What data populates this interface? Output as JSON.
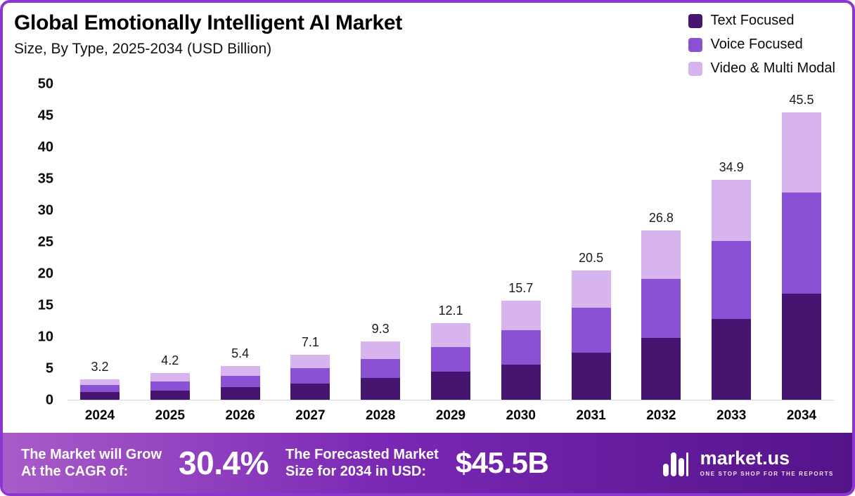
{
  "header": {
    "title": "Global Emotionally Intelligent AI Market",
    "subtitle": "Size, By Type, 2025-2034 (USD Billion)"
  },
  "chart_data": {
    "type": "bar",
    "stacked": true,
    "title": "Global Emotionally Intelligent AI Market",
    "subtitle": "Size, By Type, 2025-2034 (USD Billion)",
    "unit": "USD Billion",
    "categories": [
      "2024",
      "2025",
      "2026",
      "2027",
      "2028",
      "2029",
      "2030",
      "2031",
      "2032",
      "2033",
      "2034"
    ],
    "series": [
      {
        "id": "text-focused",
        "name": "Text Focused",
        "color": "#45156f",
        "values": [
          1.2,
          1.5,
          2.0,
          2.6,
          3.4,
          4.4,
          5.6,
          7.5,
          9.8,
          12.8,
          16.8
        ]
      },
      {
        "id": "voice-focused",
        "name": "Voice Focused",
        "color": "#8b51d4",
        "values": [
          1.1,
          1.4,
          1.8,
          2.4,
          3.1,
          4.0,
          5.4,
          7.1,
          9.4,
          12.4,
          16.0
        ]
      },
      {
        "id": "video-multi-modal",
        "name": "Video & Multi Modal",
        "color": "#d8b4ee",
        "values": [
          0.9,
          1.3,
          1.6,
          2.1,
          2.8,
          3.7,
          4.7,
          5.9,
          7.6,
          9.7,
          12.7
        ]
      }
    ],
    "totals": [
      3.2,
      4.2,
      5.4,
      7.1,
      9.3,
      12.1,
      15.7,
      20.5,
      26.8,
      34.9,
      45.5
    ],
    "ylim": [
      0,
      50
    ],
    "yticks": [
      0,
      5,
      10,
      15,
      20,
      25,
      30,
      35,
      40,
      45,
      50
    ],
    "grid": false,
    "legend_position": "top-right"
  },
  "banner": {
    "cagr_label": "The Market will Grow\nAt the CAGR of:",
    "cagr_value": "30.4%",
    "forecast_label": "The Forecasted Market\nSize for 2034 in USD:",
    "forecast_value": "$45.5B",
    "brand": "market.us",
    "tagline": "One Stop Shop For The Reports"
  },
  "colors": {
    "frame_border": "#8d36cf",
    "banner_gradient_start": "#a95bc9",
    "banner_gradient_end": "#541389",
    "text_focused": "#45156f",
    "voice_focused": "#8b51d4",
    "video_multi_modal": "#d8b4ee"
  }
}
